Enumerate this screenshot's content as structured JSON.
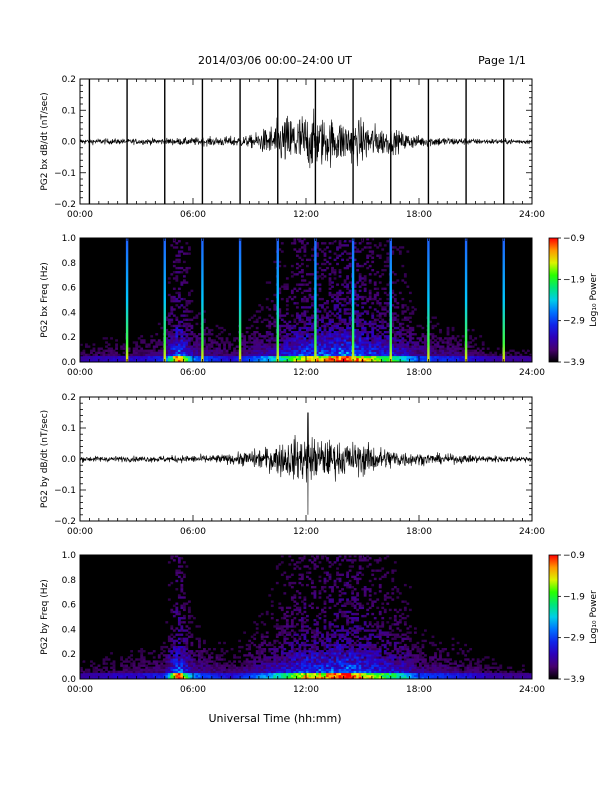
{
  "header": {
    "title": "2014/03/06  00:00–24:00 UT",
    "page": "Page 1/1"
  },
  "xaxis": {
    "ticks": [
      "00:00",
      "06:00",
      "12:00",
      "18:00",
      "24:00"
    ],
    "label": "Universal Time (hh:mm)"
  },
  "panels": [
    {
      "id": "bx-dbdt",
      "ylabel": "PG2 bx dB/dt (nT/sec)",
      "yticks": [
        "0.2",
        "0.1",
        "0.0",
        "−0.1",
        "−0.2"
      ]
    },
    {
      "id": "bx-spec",
      "ylabel": "PG2 bx Freq (Hz)",
      "yticks": [
        "1.0",
        "0.8",
        "0.6",
        "0.4",
        "0.2",
        "0.0"
      ]
    },
    {
      "id": "by-dbdt",
      "ylabel": "PG2 by dB/dt (nT/sec)",
      "yticks": [
        "0.2",
        "0.1",
        "0.0",
        "−0.1",
        "−0.2"
      ]
    },
    {
      "id": "by-spec",
      "ylabel": "PG2 by Freq (Hz)",
      "yticks": [
        "1.0",
        "0.8",
        "0.6",
        "0.4",
        "0.2",
        "0.0"
      ]
    }
  ],
  "colorbar": {
    "label": "Log₁₀ Power",
    "ticks": [
      "−0.9",
      "−1.9",
      "−2.9",
      "−3.9"
    ]
  },
  "chart_data": [
    {
      "type": "line",
      "ylabel": "PG2 bx dB/dt (nT/sec)",
      "xlabel": "Universal Time (hh:mm)",
      "xlim": [
        0,
        24
      ],
      "ylim": [
        -0.2,
        0.2
      ],
      "spikes_hours": [
        0.5,
        2.5,
        4.5,
        6.5,
        8.5,
        10.5,
        12.5,
        14.5,
        16.5,
        18.5,
        20.5,
        22.5
      ],
      "envelope": {
        "x": [
          0,
          3,
          6,
          9,
          10,
          11,
          12,
          13,
          14,
          15,
          16,
          18,
          21,
          24
        ],
        "y": [
          0.006,
          0.006,
          0.008,
          0.012,
          0.03,
          0.055,
          0.06,
          0.05,
          0.045,
          0.045,
          0.03,
          0.012,
          0.006,
          0.005
        ]
      }
    },
    {
      "type": "heatmap",
      "ylabel": "PG2 bx Freq (Hz)",
      "xlim": [
        0,
        24
      ],
      "ylim": [
        0,
        1.0
      ],
      "color_range": [
        -3.9,
        -0.9
      ],
      "vertical_lines_hours": [
        2.5,
        4.5,
        6.5,
        8.5,
        10.5,
        12.5,
        14.5,
        16.5,
        18.5,
        20.5,
        22.5
      ]
    },
    {
      "type": "line",
      "ylabel": "PG2 by dB/dt (nT/sec)",
      "xlabel": "Universal Time (hh:mm)",
      "xlim": [
        0,
        24
      ],
      "ylim": [
        -0.2,
        0.2
      ],
      "peak": {
        "x": 12.1,
        "y_max": 0.15,
        "y_min": -0.18
      },
      "envelope": {
        "x": [
          0,
          3,
          6,
          8,
          10,
          11,
          12,
          13,
          14,
          15,
          16,
          18,
          21,
          24
        ],
        "y": [
          0.006,
          0.006,
          0.008,
          0.01,
          0.025,
          0.04,
          0.05,
          0.04,
          0.035,
          0.035,
          0.025,
          0.012,
          0.008,
          0.006
        ]
      }
    },
    {
      "type": "heatmap",
      "ylabel": "PG2 by Freq (Hz)",
      "xlim": [
        0,
        24
      ],
      "ylim": [
        0,
        1.0
      ],
      "color_range": [
        -3.9,
        -0.9
      ]
    }
  ]
}
